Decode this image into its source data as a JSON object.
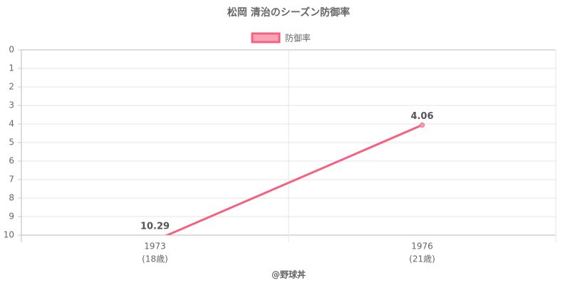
{
  "chart_data": {
    "type": "line",
    "title": "松岡 清治のシーズン防御率",
    "categories": [
      [
        "1973",
        "(18歳)"
      ],
      [
        "1976",
        "(21歳)"
      ]
    ],
    "series": [
      {
        "name": "防御率",
        "color": "#f5617f",
        "fill": "#f7a5b6",
        "values": [
          10.29,
          4.06
        ]
      }
    ],
    "ylim": [
      0,
      10
    ],
    "y_inverted": true,
    "yticks": [
      0,
      1,
      2,
      3,
      4,
      5,
      6,
      7,
      8,
      9,
      10
    ],
    "grid": true,
    "legend": "top",
    "credit": "@野球丼"
  }
}
